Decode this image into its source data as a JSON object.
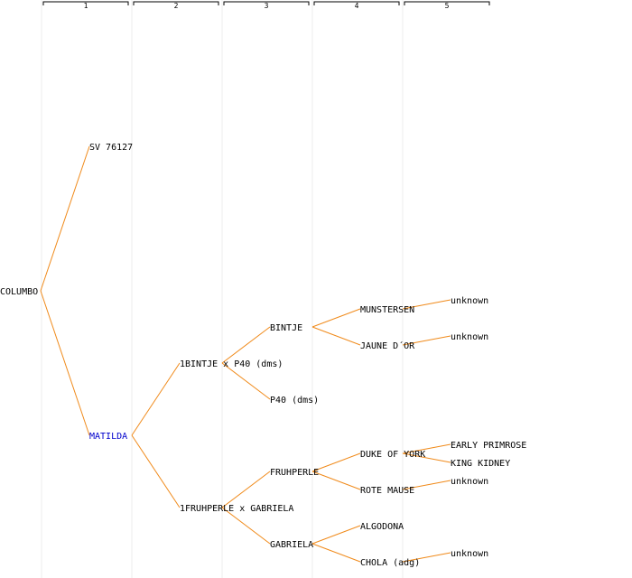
{
  "generations": [
    "1",
    "2",
    "3",
    "4",
    "5"
  ],
  "colors": {
    "edge": "#f08a1a",
    "highlight": "#0000cc",
    "text": "#000000"
  },
  "nodes": [
    {
      "id": "columbo",
      "label": "COLUMBO",
      "gen": 0,
      "row": 16
    },
    {
      "id": "sv76127",
      "label": "SV 76127",
      "gen": 1,
      "row": 8,
      "parent": "columbo"
    },
    {
      "id": "matilda",
      "label": "MATILDA",
      "gen": 1,
      "row": 24,
      "parent": "columbo",
      "highlight": true
    },
    {
      "id": "bintje_p40",
      "label": "1BINTJE x P40 (dms)",
      "gen": 2,
      "row": 20,
      "parent": "matilda"
    },
    {
      "id": "fruhperle_gab",
      "label": "1FRUHPERLE x GABRIELA",
      "gen": 2,
      "row": 28,
      "parent": "matilda"
    },
    {
      "id": "bintje",
      "label": "BINTJE",
      "gen": 3,
      "row": 18,
      "parent": "bintje_p40"
    },
    {
      "id": "p40",
      "label": "P40 (dms)",
      "gen": 3,
      "row": 22,
      "parent": "bintje_p40"
    },
    {
      "id": "fruhperle",
      "label": "FRUHPERLE",
      "gen": 3,
      "row": 26,
      "parent": "fruhperle_gab"
    },
    {
      "id": "gabriela",
      "label": "GABRIELA",
      "gen": 3,
      "row": 30,
      "parent": "fruhperle_gab"
    },
    {
      "id": "munstersen",
      "label": "MUNSTERSEN",
      "gen": 4,
      "row": 17,
      "parent": "bintje"
    },
    {
      "id": "jaune_dor",
      "label": "JAUNE D´OR",
      "gen": 4,
      "row": 19,
      "parent": "bintje"
    },
    {
      "id": "duke_of_york",
      "label": "DUKE OF YORK",
      "gen": 4,
      "row": 25,
      "parent": "fruhperle"
    },
    {
      "id": "rote_mause",
      "label": "ROTE MAUSE",
      "gen": 4,
      "row": 27,
      "parent": "fruhperle"
    },
    {
      "id": "algodona",
      "label": "ALGODONA",
      "gen": 4,
      "row": 29,
      "parent": "gabriela"
    },
    {
      "id": "chola",
      "label": "CHOLA (adg)",
      "gen": 4,
      "row": 31,
      "parent": "gabriela"
    },
    {
      "id": "unk1",
      "label": "unknown",
      "gen": 5,
      "row": 16.5,
      "parent": "munstersen"
    },
    {
      "id": "unk2",
      "label": "unknown",
      "gen": 5,
      "row": 18.5,
      "parent": "jaune_dor"
    },
    {
      "id": "early_primrose",
      "label": "EARLY PRIMROSE",
      "gen": 5,
      "row": 24.5,
      "parent": "duke_of_york"
    },
    {
      "id": "king_kidney",
      "label": "KING KIDNEY",
      "gen": 5,
      "row": 25.5,
      "parent": "duke_of_york"
    },
    {
      "id": "unk3",
      "label": "unknown",
      "gen": 5,
      "row": 26.5,
      "parent": "rote_mause"
    },
    {
      "id": "unk4",
      "label": "unknown",
      "gen": 5,
      "row": 30.5,
      "parent": "chola"
    }
  ]
}
